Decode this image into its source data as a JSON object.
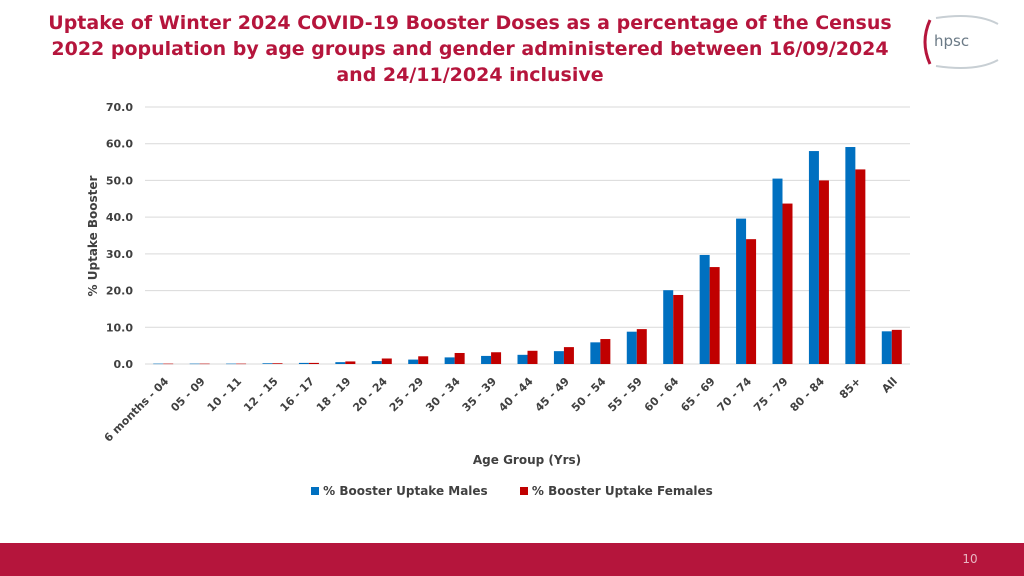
{
  "title_lines": [
    "Uptake of Winter 2024 COVID-19 Booster Doses as a percentage of the Census",
    "2022 population by age groups and gender administered between 16/09/2024",
    "and 24/11/2024 inclusive"
  ],
  "logo": {
    "text": "hpsc"
  },
  "page_number": "10",
  "colors": {
    "brand": "#b5153c",
    "males": "#0070c0",
    "females": "#c00000"
  },
  "chart_data": {
    "type": "bar",
    "title": "Uptake of Winter 2024 COVID-19 Booster Doses as a percentage of the Census 2022 population by age groups and gender administered between 16/09/2024 and 24/11/2024 inclusive",
    "xlabel": "Age Group (Yrs)",
    "ylabel": "% Uptake Booster",
    "ylim": [
      0,
      70
    ],
    "yticks": [
      "0.0",
      "10.0",
      "20.0",
      "30.0",
      "40.0",
      "50.0",
      "60.0",
      "70.0"
    ],
    "categories": [
      "6 months - 04",
      "05 - 09",
      "10 - 11",
      "12 - 15",
      "16 - 17",
      "18 - 19",
      "20 - 24",
      "25 - 29",
      "30 - 34",
      "35 - 39",
      "40 - 44",
      "45 - 49",
      "50 - 54",
      "55 - 59",
      "60 - 64",
      "65 - 69",
      "70 - 74",
      "75 - 79",
      "80 - 84",
      "85+",
      "All"
    ],
    "series": [
      {
        "name": "% Booster Uptake Males",
        "values": [
          0.1,
          0.1,
          0.1,
          0.2,
          0.3,
          0.5,
          0.8,
          1.2,
          1.8,
          2.2,
          2.5,
          3.5,
          5.9,
          8.8,
          20.1,
          29.7,
          39.6,
          50.5,
          58.0,
          59.1,
          8.9
        ]
      },
      {
        "name": "% Booster Uptake Females",
        "values": [
          0.1,
          0.1,
          0.1,
          0.2,
          0.3,
          0.7,
          1.5,
          2.1,
          3.0,
          3.2,
          3.6,
          4.6,
          6.8,
          9.5,
          18.8,
          26.4,
          34.0,
          43.7,
          50.0,
          53.0,
          9.3
        ]
      }
    ],
    "legend_position": "bottom",
    "grid": true
  }
}
